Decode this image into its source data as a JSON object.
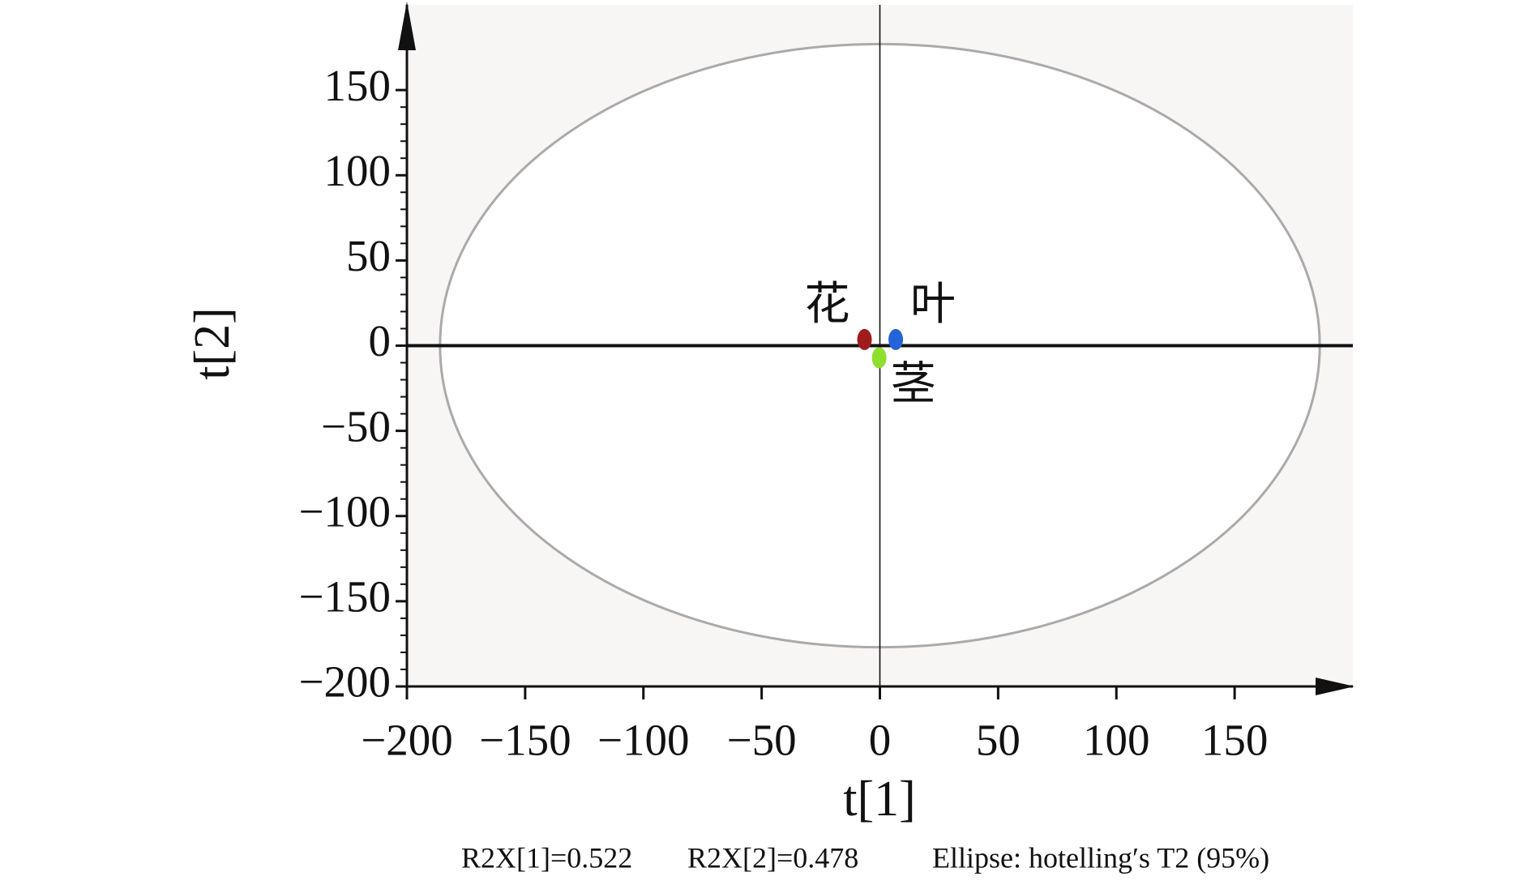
{
  "chart_data": {
    "type": "scatter",
    "xlabel": "t[1]",
    "ylabel": "t[2]",
    "xlim": [
      -200,
      200
    ],
    "ylim": [
      -200,
      200
    ],
    "xticks": [
      {
        "value": -200,
        "label": "−200"
      },
      {
        "value": -150,
        "label": "−150"
      },
      {
        "value": -100,
        "label": "−100"
      },
      {
        "value": -50,
        "label": "−50"
      },
      0,
      50,
      100,
      150
    ],
    "yticks": [
      {
        "value": -200,
        "label": "−200"
      },
      {
        "value": -150,
        "label": "−150"
      },
      {
        "value": -100,
        "label": "−100"
      },
      {
        "value": -50,
        "label": "−50"
      },
      0,
      50,
      100,
      150
    ],
    "grid": false,
    "series": [
      {
        "name": "花",
        "color": "#a01c1c",
        "x": [
          -6.5
        ],
        "y": [
          3.6
        ]
      },
      {
        "name": "叶",
        "color": "#2563d9",
        "x": [
          6.7
        ],
        "y": [
          3.6
        ]
      },
      {
        "name": "茎",
        "color": "#8fe02c",
        "x": [
          -0.3
        ],
        "y": [
          -7.1
        ]
      }
    ],
    "ellipse": {
      "rx": 186,
      "ry": 177,
      "label": "Ellipse: hotelling′s T2 (95%)"
    },
    "footer": [
      "R2X[1]=0.522",
      "R2X[2]=0.478"
    ]
  }
}
